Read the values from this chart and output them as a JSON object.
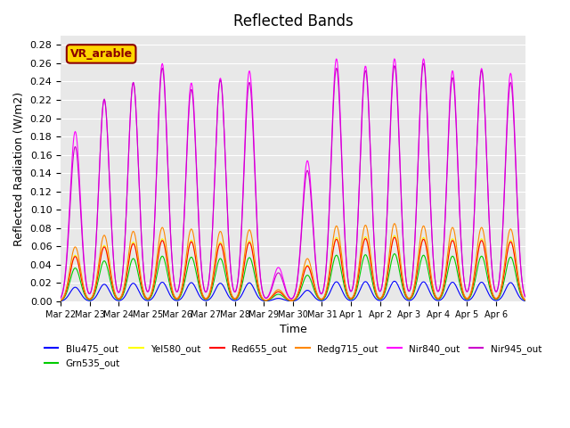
{
  "title": "Reflected Bands",
  "xlabel": "Time",
  "ylabel": "Reflected Radiation (W/m2)",
  "annotation_text": "VR_arable",
  "annotation_color": "#8B0000",
  "annotation_bg": "#FFD700",
  "ylim": [
    0,
    0.29
  ],
  "yticks": [
    0.0,
    0.02,
    0.04,
    0.06,
    0.08,
    0.1,
    0.12,
    0.14,
    0.16,
    0.18,
    0.2,
    0.22,
    0.24,
    0.26,
    0.28
  ],
  "bg_color": "#E8E8E8",
  "series": {
    "Blu475_out": {
      "color": "#0000FF",
      "scale": 0.022
    },
    "Grn535_out": {
      "color": "#00CC00",
      "scale": 0.052
    },
    "Yel580_out": {
      "color": "#FFFF00",
      "scale": 0.072
    },
    "Red655_out": {
      "color": "#FF0000",
      "scale": 0.07
    },
    "Redg715_out": {
      "color": "#FF8800",
      "scale": 0.085
    },
    "Nir840_out": {
      "color": "#FF00FF",
      "scale": 0.265
    },
    "Nir945_out": {
      "color": "#CC00CC",
      "scale": 0.26
    }
  },
  "x_tick_labels": [
    "Mar 22",
    "Mar 23",
    "Mar 24",
    "Mar 25",
    "Mar 26",
    "Mar 27",
    "Mar 28",
    "Mar 29",
    "Mar 30",
    "Mar 31",
    "Apr 1",
    "Apr 2",
    "Apr 3",
    "Apr 4",
    "Apr 5",
    "Apr 6"
  ],
  "n_days": 16,
  "points_per_day": 48,
  "peak_day_scales": [
    0.7,
    0.85,
    0.9,
    0.95,
    0.93,
    0.9,
    0.92,
    0.15,
    0.55,
    0.97,
    0.98,
    1.0,
    0.97,
    0.95,
    0.95,
    0.93
  ],
  "nir840_peak_scales": [
    0.7,
    0.83,
    0.9,
    0.98,
    0.9,
    0.92,
    0.95,
    0.14,
    0.58,
    1.0,
    0.97,
    1.0,
    1.0,
    0.95,
    0.96,
    0.94
  ],
  "nir945_peak_scales": [
    0.65,
    0.85,
    0.92,
    0.98,
    0.89,
    0.93,
    0.92,
    0.12,
    0.55,
    0.98,
    0.97,
    0.99,
    1.0,
    0.94,
    0.97,
    0.92
  ]
}
